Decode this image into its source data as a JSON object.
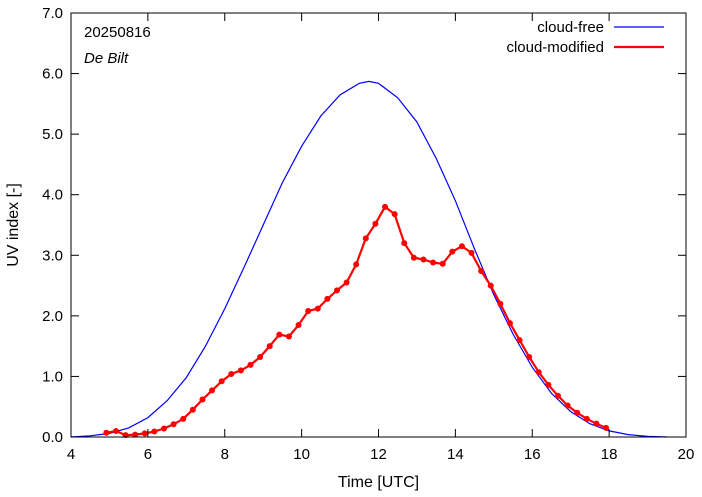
{
  "chart_data": {
    "type": "line",
    "xlabel": "Time  [UTC]",
    "ylabel": "UV index  [-]",
    "xlim": [
      4,
      20
    ],
    "ylim": [
      0,
      7
    ],
    "x_ticks": [
      4,
      6,
      8,
      10,
      12,
      14,
      16,
      18,
      20
    ],
    "x_tick_labels": [
      "4",
      "6",
      "8",
      "10",
      "12",
      "14",
      "16",
      "18",
      "20"
    ],
    "y_ticks": [
      0,
      1,
      2,
      3,
      4,
      5,
      6,
      7
    ],
    "y_tick_labels": [
      "0.0",
      "1.0",
      "2.0",
      "3.0",
      "4.0",
      "5.0",
      "6.0",
      "7.0"
    ],
    "grid": false,
    "legend_position": "top-right",
    "annotations": [
      "20250816",
      "De Bilt"
    ],
    "series": [
      {
        "name": "cloud-free",
        "color": "#0000ff",
        "x": [
          4.0,
          4.5,
          5.0,
          5.5,
          6.0,
          6.5,
          7.0,
          7.5,
          8.0,
          8.5,
          9.0,
          9.5,
          10.0,
          10.5,
          11.0,
          11.5,
          11.75,
          12.0,
          12.5,
          13.0,
          13.5,
          14.0,
          14.5,
          15.0,
          15.5,
          16.0,
          16.5,
          17.0,
          17.5,
          18.0,
          18.5,
          19.0,
          19.5
        ],
        "y": [
          0.0,
          0.02,
          0.06,
          0.15,
          0.32,
          0.6,
          0.98,
          1.5,
          2.12,
          2.8,
          3.5,
          4.2,
          4.8,
          5.3,
          5.65,
          5.84,
          5.87,
          5.84,
          5.6,
          5.2,
          4.6,
          3.9,
          3.1,
          2.35,
          1.7,
          1.15,
          0.72,
          0.42,
          0.22,
          0.1,
          0.04,
          0.01,
          0.0
        ]
      },
      {
        "name": "cloud-modified",
        "color": "#ff0000",
        "x": [
          4.92,
          5.17,
          5.42,
          5.67,
          5.92,
          6.17,
          6.42,
          6.67,
          6.92,
          7.17,
          7.42,
          7.67,
          7.92,
          8.17,
          8.42,
          8.67,
          8.92,
          9.17,
          9.42,
          9.67,
          9.92,
          10.17,
          10.42,
          10.67,
          10.92,
          11.17,
          11.42,
          11.67,
          11.92,
          12.17,
          12.42,
          12.67,
          12.92,
          13.17,
          13.42,
          13.67,
          13.92,
          14.17,
          14.42,
          14.67,
          14.92,
          15.17,
          15.42,
          15.67,
          15.92,
          16.17,
          16.42,
          16.67,
          16.92,
          17.17,
          17.42,
          17.67,
          17.92
        ],
        "y": [
          0.07,
          0.1,
          0.03,
          0.04,
          0.06,
          0.09,
          0.14,
          0.21,
          0.3,
          0.45,
          0.62,
          0.77,
          0.92,
          1.04,
          1.1,
          1.19,
          1.32,
          1.5,
          1.69,
          1.66,
          1.85,
          2.08,
          2.12,
          2.28,
          2.42,
          2.55,
          2.85,
          3.28,
          3.52,
          3.8,
          3.68,
          3.2,
          2.96,
          2.93,
          2.88,
          2.86,
          3.06,
          3.15,
          3.04,
          2.74,
          2.5,
          2.2,
          1.88,
          1.6,
          1.32,
          1.07,
          0.86,
          0.68,
          0.52,
          0.4,
          0.3,
          0.22,
          0.15
        ]
      }
    ]
  }
}
